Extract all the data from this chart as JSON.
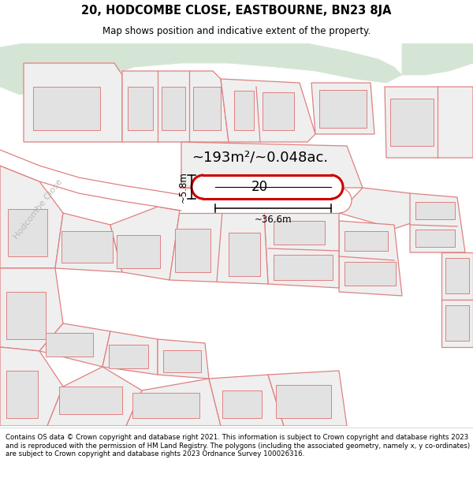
{
  "title_line1": "20, HODCOMBE CLOSE, EASTBOURNE, BN23 8JA",
  "title_line2": "Map shows position and indicative extent of the property.",
  "footer_text": "Contains OS data © Crown copyright and database right 2021. This information is subject to Crown copyright and database rights 2023 and is reproduced with the permission of HM Land Registry. The polygons (including the associated geometry, namely x, y co-ordinates) are subject to Crown copyright and database rights 2023 Ordnance Survey 100026316.",
  "area_label": "~193m²/~0.048ac.",
  "width_label": "~36.6m",
  "height_label": "~5.8m",
  "property_number": "20",
  "street_label": "Hodcombe Close",
  "street_label2": "Hodcombe Close",
  "map_bg": "#f5f5f5",
  "green_color": "#d5e5d5",
  "plot_outline_color": "#cc0000",
  "road_line_color": "#e08080",
  "road_fill": "#ffffff",
  "building_fill": "#e2e2e2",
  "plot_fill": "#ffffff",
  "header_bg": "#ffffff",
  "footer_bg": "#ffffff"
}
